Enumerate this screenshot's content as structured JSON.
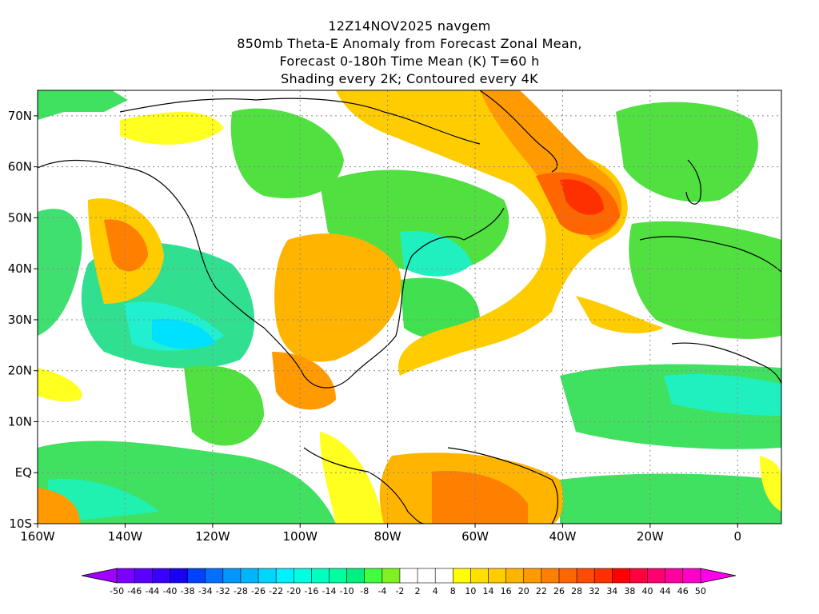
{
  "title": {
    "line1": "12Z14NOV2025 navgem",
    "line2": "850mb Theta-E Anomaly from Forecast Zonal Mean,",
    "line3": "Forecast 0-180h Time Mean (K) T=60 h",
    "line4": "Shading every 2K; Contoured every 4K"
  },
  "map": {
    "lon_range": [
      -160,
      10
    ],
    "lat_range": [
      -10,
      75
    ],
    "lat_labels": [
      "10S",
      "EQ",
      "10N",
      "20N",
      "30N",
      "40N",
      "50N",
      "60N",
      "70N"
    ],
    "lat_values": [
      -10,
      0,
      10,
      20,
      30,
      40,
      50,
      60,
      70
    ],
    "lon_labels": [
      "160W",
      "140W",
      "120W",
      "100W",
      "80W",
      "60W",
      "40W",
      "20W",
      "0"
    ],
    "lon_values": [
      -160,
      -140,
      -120,
      -100,
      -80,
      -60,
      -40,
      -20,
      0
    ],
    "gridlines": "dotted"
  },
  "colorbar": {
    "labels": [
      "-50",
      "-46",
      "-44",
      "-40",
      "-38",
      "-34",
      "-32",
      "-28",
      "-26",
      "-22",
      "-20",
      "-16",
      "-14",
      "-10",
      "-8",
      "-4",
      "-2",
      "2",
      "4",
      "8",
      "10",
      "14",
      "16",
      "20",
      "22",
      "26",
      "28",
      "32",
      "34",
      "38",
      "40",
      "44",
      "46",
      "50"
    ],
    "colors": [
      "#a000ff",
      "#7a00ff",
      "#5a00ff",
      "#3a00ff",
      "#1a00f0",
      "#0040ff",
      "#0070ff",
      "#0095ff",
      "#00b5ff",
      "#00d5ff",
      "#00f0ff",
      "#00ffe0",
      "#00ffc0",
      "#00ffa0",
      "#00f080",
      "#40ff40",
      "#80f020",
      "#ffffff",
      "#ffffff",
      "#ffffff",
      "#ffff00",
      "#ffe000",
      "#ffcc00",
      "#ffb400",
      "#ff9a00",
      "#ff8000",
      "#ff6600",
      "#ff4c00",
      "#ff3000",
      "#ff0000",
      "#ff0040",
      "#ff0070",
      "#ff00a0",
      "#ff00c8",
      "#ff00ee"
    ]
  }
}
